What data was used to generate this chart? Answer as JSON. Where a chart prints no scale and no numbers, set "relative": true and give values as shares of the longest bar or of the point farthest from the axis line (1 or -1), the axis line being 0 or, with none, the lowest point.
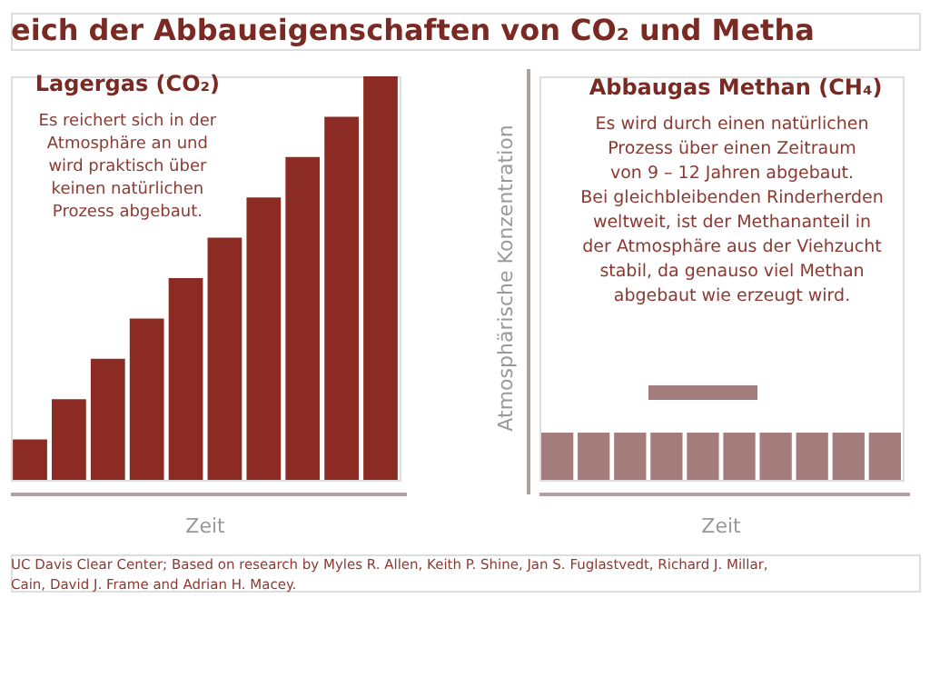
{
  "chart_data": [
    {
      "type": "other",
      "title": "eich der Abbaueigenschaften von CO₂ und Metha",
      "annotations": [
        "UC Davis Clear Center; Based on research by Myles R. Allen, Keith P. Shine, Jan S. Fuglastvedt, Richard J. Millar,\nCain, David J. Frame and Adrian H. Macey."
      ]
    },
    {
      "type": "bar",
      "relative": true,
      "title": "Lagergas (CO₂)",
      "xlabel": "Zeit",
      "tick_labels": false,
      "annotations": [
        "Es reichert sich in der\nAtmosphäre an und\nwird praktisch über\nkeinen natürlichen\nProzess abgebaut."
      ],
      "categories": [
        null,
        null,
        null,
        null,
        null,
        null,
        null,
        null,
        null,
        null
      ],
      "series": [
        {
          "color": "#8b2b24",
          "values": [
            0.1,
            0.2,
            0.3,
            0.4,
            0.5,
            0.6,
            0.7,
            0.8,
            0.9,
            1
          ]
        }
      ]
    },
    {
      "type": "bar",
      "relative": true,
      "title": "Abbaugas Methan (CH₄)",
      "xlabel": "Zeit",
      "ylabel": "Atmosphärische Konzentration",
      "tick_labels": false,
      "annotations": [
        "Es wird durch einen natürlichen\nProzess über einen Zeitraum\nvon 9 – 12 Jahren abgebaut.\nBei gleichbleibenden Rinderherden\nweltweit, ist der Methananteil in\nder Atmosphäre aus der Viehzucht\nstabil, da genauso viel Methan\nabgebaut wie erzeugt wird."
      ],
      "categories": [
        null,
        null,
        null,
        null,
        null,
        null,
        null,
        null,
        null,
        null
      ],
      "series": [
        {
          "color": "#a57c7c",
          "values": [
            1,
            1,
            1,
            1,
            1,
            1,
            1,
            1,
            1,
            1
          ]
        }
      ]
    }
  ]
}
